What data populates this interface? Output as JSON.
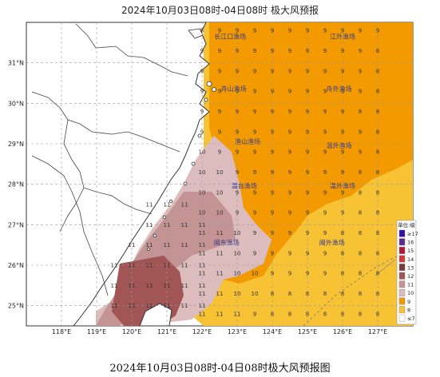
{
  "title": "2024年10月03日08时-04日08时 极大风预报",
  "caption": "2024年10月03日08时-04日08时极大风预报图",
  "axes": {
    "lon_ticks": [
      "118°E",
      "119°E",
      "120°E",
      "121°E",
      "122°E",
      "123°E",
      "124°E",
      "125°E",
      "126°E",
      "127°E"
    ],
    "lat_ticks": [
      "31°N",
      "30°N",
      "29°N",
      "28°N",
      "27°N",
      "26°N",
      "25°N"
    ],
    "lon_range": [
      117.0,
      128.0
    ],
    "lat_range": [
      24.5,
      32.0
    ]
  },
  "fishing_grounds": [
    {
      "name": "长江口渔场",
      "lon": 122.8,
      "lat": 31.6
    },
    {
      "name": "江外渔场",
      "lon": 126.0,
      "lat": 31.6
    },
    {
      "name": "舟山渔场",
      "lon": 122.9,
      "lat": 30.3
    },
    {
      "name": "舟外渔场",
      "lon": 125.9,
      "lat": 30.3
    },
    {
      "name": "渔山渔场",
      "lon": 123.3,
      "lat": 29.0
    },
    {
      "name": "温外渔场",
      "lon": 125.9,
      "lat": 28.9
    },
    {
      "name": "温台渔场",
      "lon": 123.2,
      "lat": 27.9
    },
    {
      "name": "温外渔场",
      "lon": 126.0,
      "lat": 27.9
    },
    {
      "name": "闽东渔场",
      "lon": 122.7,
      "lat": 26.5
    },
    {
      "name": "闽外渔场",
      "lon": 125.7,
      "lat": 26.5
    }
  ],
  "legend": {
    "title": "单位:级",
    "items": [
      {
        "label": "≥17",
        "color": "#3a0ca3"
      },
      {
        "label": "16",
        "color": "#5b2a8c"
      },
      {
        "label": "15",
        "color": "#b0173a"
      },
      {
        "label": "14",
        "color": "#d43a3a"
      },
      {
        "label": "13",
        "color": "#7a3b3b"
      },
      {
        "label": "12",
        "color": "#a25555"
      },
      {
        "label": "11",
        "color": "#c49393"
      },
      {
        "label": "10",
        "color": "#dcbcbc"
      },
      {
        "label": "9",
        "color": "#f29a00"
      },
      {
        "label": "8",
        "color": "#f7c234"
      },
      {
        "label": "≤7",
        "color": "#ffffff"
      }
    ]
  },
  "colors": {
    "level_8": "#f7c234",
    "level_9": "#f29a00",
    "level_10": "#dcbcbc",
    "level_11": "#c49393",
    "level_12": "#a25555",
    "land": "#ffffff",
    "grid": "#9a9a9a",
    "boundary": "#333333"
  },
  "grid_values": {
    "lon0": 122.0,
    "lat0": 31.8,
    "dlon": 0.5,
    "dlat": -0.5,
    "rows": [
      "89999999999",
      "99999999998",
      "99999999998",
      "99999999998",
      "99999999988",
      "99999999998",
      "09999999998",
      "00999999988",
      "00999999988",
      "00999999988",
      "11099999888",
      "11099999888",
      "11009999888",
      "11008888888",
      "11198888888",
      "11988888888"
    ],
    "coastal_rows": [
      {
        "lat": 27.5,
        "lon0": 120.5,
        "vals": "111"
      },
      {
        "lat": 27.0,
        "lon0": 120.5,
        "vals": "1111"
      },
      {
        "lat": 26.5,
        "lon0": 120.0,
        "vals": "11111"
      },
      {
        "lat": 26.0,
        "lon0": 119.5,
        "vals": "211111"
      },
      {
        "lat": 25.5,
        "lon0": 119.5,
        "vals": "111111"
      },
      {
        "lat": 25.0,
        "lon0": 119.5,
        "vals": "111111"
      }
    ]
  }
}
